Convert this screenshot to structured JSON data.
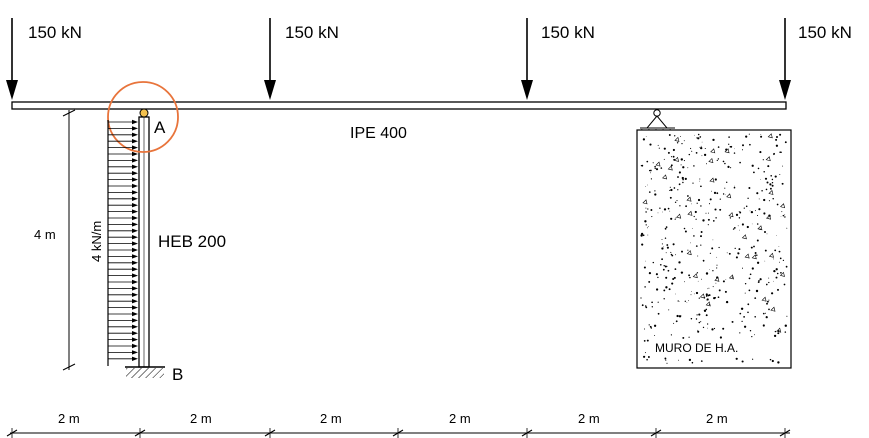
{
  "loads": [
    {
      "label": "150 kN"
    },
    {
      "label": "150 kN"
    },
    {
      "label": "150 kN"
    },
    {
      "label": "150 kN"
    }
  ],
  "beam": {
    "label": "IPE 400"
  },
  "column": {
    "label": "HEB 200",
    "top_node": "A",
    "bottom_node": "B"
  },
  "distributed_load": {
    "label": "4 kN/m"
  },
  "height": {
    "label": "4 m"
  },
  "wall": {
    "label": "MURO DE H.A."
  },
  "spans": [
    {
      "label": "2 m"
    },
    {
      "label": "2 m"
    },
    {
      "label": "2 m"
    },
    {
      "label": "2 m"
    },
    {
      "label": "2 m"
    },
    {
      "label": "2 m"
    }
  ],
  "colors": {
    "line": "#000000",
    "highlight": "#e8743b",
    "hinge": "#f2c14e"
  }
}
